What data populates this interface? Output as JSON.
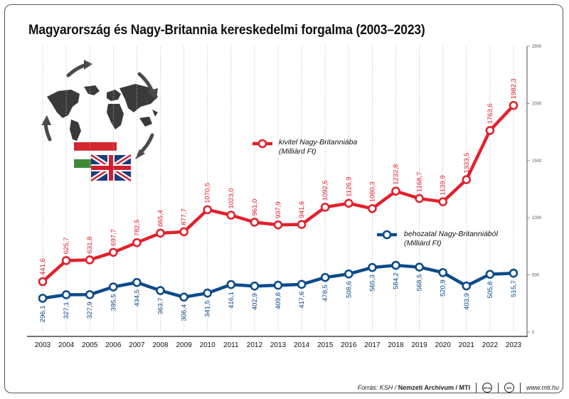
{
  "title": "Magyarország és Nagy-Britannia kereskedelmi forgalma (2003–2023)",
  "footer": {
    "source_label": "Forrás: KSH /",
    "source_org": "Nemzeti Archívum / MTI",
    "logo1": "MTVA",
    "logo2": "MTI",
    "website": "www.mti.hu"
  },
  "chart_data": {
    "type": "line",
    "categories": [
      "2003",
      "2004",
      "2005",
      "2006",
      "2007",
      "2008",
      "2009",
      "2010",
      "2011",
      "2012",
      "2013",
      "2014",
      "2015",
      "2016",
      "2017",
      "2018",
      "2019",
      "2020",
      "2021",
      "2022",
      "2023"
    ],
    "series": [
      {
        "name": "kivitel Nagy-Britanniába",
        "unit": "(Milliárd Ft)",
        "color": "#e2202b",
        "values": [
          441.6,
          625.7,
          631.8,
          697.7,
          782.5,
          865.4,
          877.7,
          1070.5,
          1023.0,
          961.0,
          937.9,
          941.6,
          1092.5,
          1126.9,
          1080.3,
          1232.8,
          1168.7,
          1139.9,
          1333.5,
          1763.6,
          1982.3
        ],
        "labels": [
          "441,6",
          "625,7",
          "631,8",
          "697,7",
          "782,5",
          "865,4",
          "877,7",
          "1070,5",
          "1023,0",
          "961,0",
          "937,9",
          "941,6",
          "1092,5",
          "1126,9",
          "1080,3",
          "1232,8",
          "1168,7",
          "1139,9",
          "1333,5",
          "1763,6",
          "1982,3"
        ]
      },
      {
        "name": "behozatal Nagy-Britanniából",
        "unit": "(Milliárd Ft)",
        "color": "#0c4a8a",
        "values": [
          296.1,
          327.1,
          327.9,
          395.5,
          434.5,
          363.7,
          306.4,
          341.5,
          416.1,
          402.9,
          409.8,
          417.6,
          478.5,
          508.6,
          565.3,
          584.2,
          568.5,
          520.9,
          403.9,
          505.8,
          515.7
        ],
        "labels": [
          "296,1",
          "327,1",
          "327,9",
          "395,5",
          "434,5",
          "363,7",
          "306,4",
          "341,5",
          "416,1",
          "402,9",
          "409,8",
          "417,6",
          "478,5",
          "508,6",
          "565,3",
          "584,2",
          "568,5",
          "520,9",
          "403,9",
          "505,8",
          "515,7"
        ]
      }
    ],
    "y_ticks": [
      "0",
      "500",
      "1000",
      "1500",
      "2000",
      "2500"
    ],
    "ylim": [
      0,
      2500
    ],
    "grid": "vertical dotted lines",
    "legend_placement": "inline next to lines"
  }
}
